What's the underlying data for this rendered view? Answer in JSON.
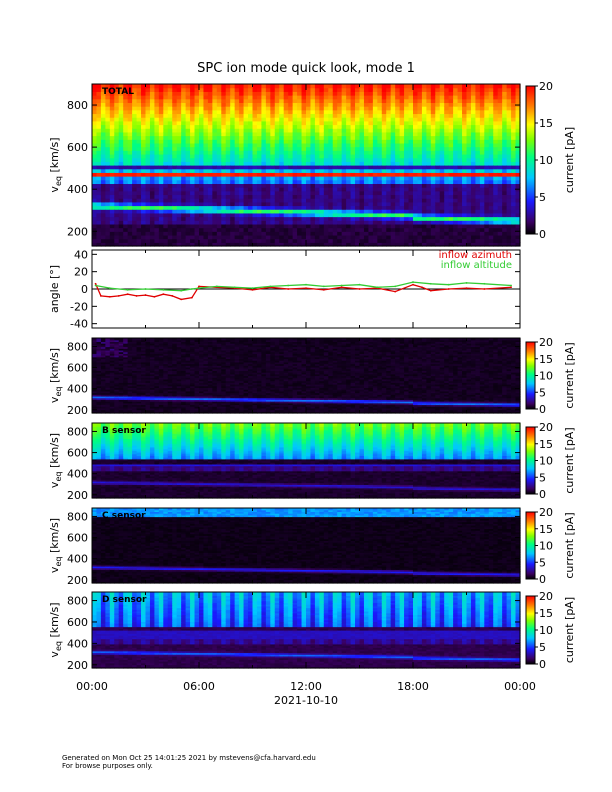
{
  "figure": {
    "title": "SPC ion mode quick look, mode 1",
    "footer_line1": "Generated on Mon Oct 25 14:01:25 2021 by mstevens@cfa.harvard.edu",
    "footer_line2": "For browse purposes only."
  },
  "colors": {
    "background": "#ffffff",
    "axes": "#000000",
    "azimuth_series": "#e00000",
    "altitude_series": "#33cc33"
  },
  "colormap": "rainbow (black → purple → blue → cyan → green → yellow → orange → red)",
  "chart_data": [
    {
      "type": "heatmap",
      "panel_label": "TOTAL",
      "ylabel": "v_eq [km/s]",
      "ylabel_main": "v",
      "ylabel_sub": "eq",
      "ylabel_unit": " [km/s]",
      "yticks": [
        200,
        400,
        600,
        800
      ],
      "ylim": [
        130,
        900
      ],
      "colorbar_label": "current [pA]",
      "colorbar_ticks": [
        0,
        5,
        10,
        15,
        20
      ],
      "clim": [
        0,
        20
      ],
      "description_values": {
        "proton_beam_speed_kms": [
          320,
          300,
          290,
          280,
          275,
          270,
          265,
          260
        ],
        "bands_kms": [
          500,
          460
        ]
      }
    },
    {
      "type": "line",
      "ylabel": "angle [°]",
      "yticks": [
        -40,
        -20,
        0,
        20,
        40
      ],
      "ylim": [
        -45,
        45
      ],
      "legend": [
        "inflow azimuth",
        "inflow altitude"
      ],
      "legend_position": "top-right",
      "series": [
        {
          "name": "inflow azimuth",
          "color": "#e00000",
          "x_hours": [
            0.2,
            0.5,
            1.0,
            1.5,
            2.0,
            2.5,
            3.0,
            3.5,
            4.0,
            4.5,
            5.0,
            5.6,
            6.0,
            7.0,
            8.0,
            9.0,
            10.0,
            11.0,
            12.0,
            13.0,
            14.0,
            15.0,
            16.0,
            17.0,
            18.0,
            18.5,
            19.0,
            20.0,
            21.0,
            22.0,
            23.5
          ],
          "values": [
            6,
            -8,
            -9,
            -8,
            -6,
            -8,
            -7,
            -9,
            -6,
            -8,
            -12,
            -10,
            3,
            2,
            1,
            -1,
            2,
            0,
            1,
            -1,
            2,
            0,
            1,
            -3,
            5,
            2,
            -2,
            0,
            1,
            0,
            2
          ]
        },
        {
          "name": "inflow altitude",
          "color": "#33cc33",
          "x_hours": [
            0.2,
            1.0,
            2.0,
            3.0,
            4.0,
            5.0,
            5.6,
            6.0,
            7.0,
            8.0,
            9.0,
            10.0,
            11.0,
            12.0,
            13.0,
            14.0,
            15.0,
            16.0,
            17.0,
            18.0,
            19.0,
            20.0,
            21.0,
            22.0,
            23.5
          ],
          "values": [
            4,
            1,
            -1,
            0,
            -1,
            -2,
            0,
            1,
            3,
            2,
            1,
            3,
            4,
            5,
            3,
            4,
            5,
            2,
            3,
            8,
            6,
            5,
            7,
            6,
            4
          ]
        }
      ]
    },
    {
      "type": "heatmap",
      "panel_label": "",
      "ylabel": "v_eq [km/s]",
      "yticks": [
        200,
        400,
        600,
        800
      ],
      "ylim": [
        170,
        880
      ],
      "colorbar_label": "current [pA]",
      "colorbar_ticks": [
        0,
        5,
        10,
        15,
        20
      ],
      "clim": [
        0,
        20
      ]
    },
    {
      "type": "heatmap",
      "panel_label": "B sensor",
      "ylabel": "v_eq [km/s]",
      "yticks": [
        200,
        400,
        600,
        800
      ],
      "ylim": [
        170,
        880
      ],
      "colorbar_label": "current [pA]",
      "colorbar_ticks": [
        0,
        5,
        10,
        15,
        20
      ],
      "clim": [
        0,
        20
      ]
    },
    {
      "type": "heatmap",
      "panel_label": "C sensor",
      "ylabel": "v_eq [km/s]",
      "yticks": [
        200,
        400,
        600,
        800
      ],
      "ylim": [
        170,
        880
      ],
      "colorbar_label": "current [pA]",
      "colorbar_ticks": [
        0,
        5,
        10,
        15,
        20
      ],
      "clim": [
        0,
        20
      ]
    },
    {
      "type": "heatmap",
      "panel_label": "D sensor",
      "ylabel": "v_eq [km/s]",
      "yticks": [
        200,
        400,
        600,
        800
      ],
      "ylim": [
        170,
        880
      ],
      "colorbar_label": "current [pA]",
      "colorbar_ticks": [
        0,
        5,
        10,
        15,
        20
      ],
      "clim": [
        0,
        20
      ]
    }
  ],
  "xaxis": {
    "tick_labels": [
      "00:00",
      "06:00",
      "12:00",
      "18:00",
      "00:00"
    ],
    "tick_hours": [
      0,
      6,
      12,
      18,
      24
    ],
    "xlim_hours": [
      0,
      24
    ],
    "date_label": "2021-10-10"
  }
}
